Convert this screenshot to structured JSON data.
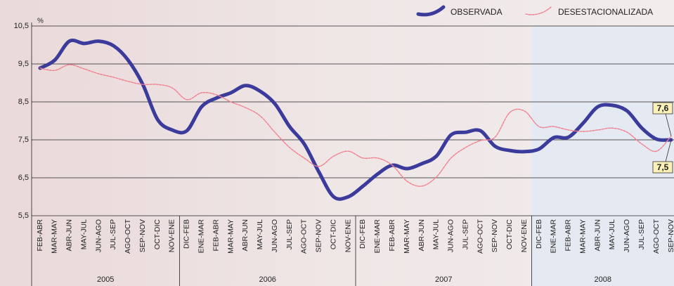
{
  "chart_data": {
    "type": "line",
    "y_unit": "%",
    "categories": [
      "FEB-ABR",
      "MAR-MAY",
      "ABR-JUN",
      "MAY-JUL",
      "JUN-AGO",
      "JUL-SEP",
      "AGO-OCT",
      "SEP-NOV",
      "OCT-DIC",
      "NOV-ENE",
      "DIC-FEB",
      "ENE-MAR",
      "FEB-ABR",
      "MAR-MAY",
      "ABR-JUN",
      "MAY-JUL",
      "JUN-AGO",
      "JUL-SEP",
      "AGO-OCT",
      "SEP-NOV",
      "OCT-DIC",
      "NOV-ENE",
      "DIC-FEB",
      "ENE-MAR",
      "FEB-ABR",
      "MAR-MAY",
      "ABR-JUN",
      "MAY-JUL",
      "JUN-AGO",
      "JUL-SEP",
      "AGO-OCT",
      "SEP-NOV",
      "OCT-DIC",
      "NOV-ENE",
      "DIC-FEB",
      "ENE-MAR",
      "FEB-ABR",
      "MAR-MAY",
      "ABR-JUN",
      "MAY-JUL",
      "JUN-AGO",
      "JUL-SEP",
      "AGO-OCT",
      "SEP-NOV"
    ],
    "x_groups": [
      {
        "label": "2005",
        "size": 10
      },
      {
        "label": "2006",
        "size": 12
      },
      {
        "label": "2007",
        "size": 12
      },
      {
        "label": "2008",
        "size": 10
      }
    ],
    "series": [
      {
        "name": "OBSERVADA",
        "color": "#3b3b9c",
        "values": [
          9.39,
          9.6,
          10.1,
          10.04,
          10.1,
          9.98,
          9.6,
          8.96,
          8.04,
          7.76,
          7.74,
          8.37,
          8.6,
          8.74,
          8.93,
          8.78,
          8.45,
          7.85,
          7.39,
          6.65,
          6.0,
          6.0,
          6.28,
          6.6,
          6.83,
          6.74,
          6.87,
          7.07,
          7.63,
          7.7,
          7.74,
          7.33,
          7.22,
          7.19,
          7.26,
          7.56,
          7.57,
          7.94,
          8.37,
          8.41,
          8.26,
          7.81,
          7.52,
          7.5
        ],
        "value_labels": [
          null,
          null,
          null,
          null,
          null,
          null,
          null,
          null,
          null,
          null,
          null,
          null,
          null,
          null,
          null,
          null,
          null,
          null,
          null,
          null,
          null,
          null,
          null,
          null,
          null,
          null,
          null,
          null,
          null,
          null,
          null,
          null,
          null,
          null,
          null,
          null,
          null,
          null,
          null,
          null,
          null,
          null,
          null,
          "7,5"
        ]
      },
      {
        "name": "DESESTACIONALIZADA",
        "color": "#f0808f",
        "values": [
          9.39,
          9.33,
          9.48,
          9.37,
          9.24,
          9.15,
          9.04,
          8.96,
          8.96,
          8.87,
          8.56,
          8.74,
          8.69,
          8.5,
          8.35,
          8.13,
          7.7,
          7.3,
          7.02,
          6.8,
          7.07,
          7.2,
          7.02,
          7.02,
          6.83,
          6.41,
          6.28,
          6.52,
          7.02,
          7.3,
          7.48,
          7.57,
          8.22,
          8.26,
          7.85,
          7.85,
          7.76,
          7.72,
          7.76,
          7.81,
          7.7,
          7.39,
          7.2,
          7.6
        ],
        "value_labels": [
          null,
          null,
          null,
          null,
          null,
          null,
          null,
          null,
          null,
          null,
          null,
          null,
          null,
          null,
          null,
          null,
          null,
          null,
          null,
          null,
          null,
          null,
          null,
          null,
          null,
          null,
          null,
          null,
          null,
          null,
          null,
          null,
          null,
          null,
          null,
          null,
          null,
          null,
          null,
          null,
          null,
          null,
          null,
          "7,6"
        ]
      }
    ],
    "ylim": [
      5.5,
      10.5
    ],
    "yticks": [
      {
        "value": 5.5,
        "label": "5,5"
      },
      {
        "value": 6.5,
        "label": "6,5"
      },
      {
        "value": 7.5,
        "label": "7,5"
      },
      {
        "value": 8.5,
        "label": "8,5"
      },
      {
        "value": 9.5,
        "label": "9,5"
      },
      {
        "value": 10.5,
        "label": "10,5"
      }
    ],
    "grid": true
  }
}
